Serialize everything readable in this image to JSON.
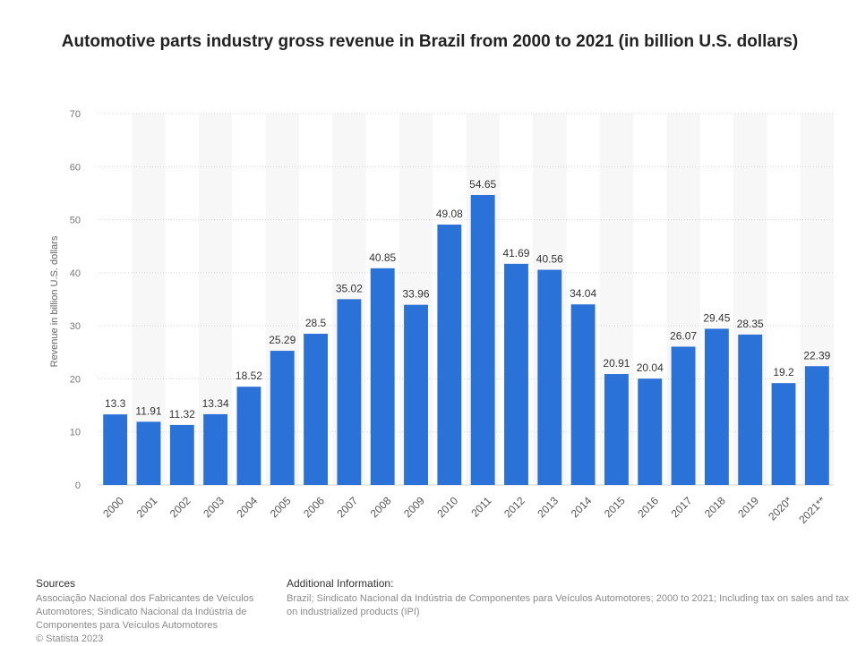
{
  "chart_data": {
    "type": "bar",
    "title": "Automotive parts industry gross revenue in Brazil from 2000 to 2021 (in billion U.S. dollars)",
    "xlabel": "",
    "ylabel": "Revenue in billion U.S. dollars",
    "categories": [
      "2000",
      "2001",
      "2002",
      "2003",
      "2004",
      "2005",
      "2006",
      "2007",
      "2008",
      "2009",
      "2010",
      "2011",
      "2012",
      "2013",
      "2014",
      "2015",
      "2016",
      "2017",
      "2018",
      "2019",
      "2020*",
      "2021**"
    ],
    "values": [
      13.3,
      11.91,
      11.32,
      13.34,
      18.52,
      25.29,
      28.5,
      35.02,
      40.85,
      33.96,
      49.08,
      54.65,
      41.69,
      40.56,
      34.04,
      20.91,
      20.04,
      26.07,
      29.45,
      28.35,
      19.2,
      22.39
    ],
    "value_labels": [
      "13.3",
      "11.91",
      "11.32",
      "13.34",
      "18.52",
      "25.29",
      "28.5",
      "35.02",
      "40.85",
      "33.96",
      "49.08",
      "54.65",
      "41.69",
      "40.56",
      "34.04",
      "20.91",
      "20.04",
      "26.07",
      "29.45",
      "28.35",
      "19.2",
      "22.39"
    ],
    "ylim": [
      0,
      70
    ],
    "yticks": [
      0,
      10,
      20,
      30,
      40,
      50,
      60,
      70
    ],
    "grid": true,
    "legend": "none",
    "bar_color": "#2a71d8"
  },
  "footer": {
    "sources_heading": "Sources",
    "sources_text": "Associação Nacional dos Fabricantes de Veículos Automotores; Sindicato Nacional da Indústria de Componentes para Veículos Automotores",
    "copyright": "© Statista 2023",
    "additional_heading": "Additional Information:",
    "additional_text": "Brazil; Sindicato Nacional da Indústria de Componentes para Veículos Automotores; 2000 to 2021; Including tax on sales and tax on industrialized products (IPI)"
  }
}
